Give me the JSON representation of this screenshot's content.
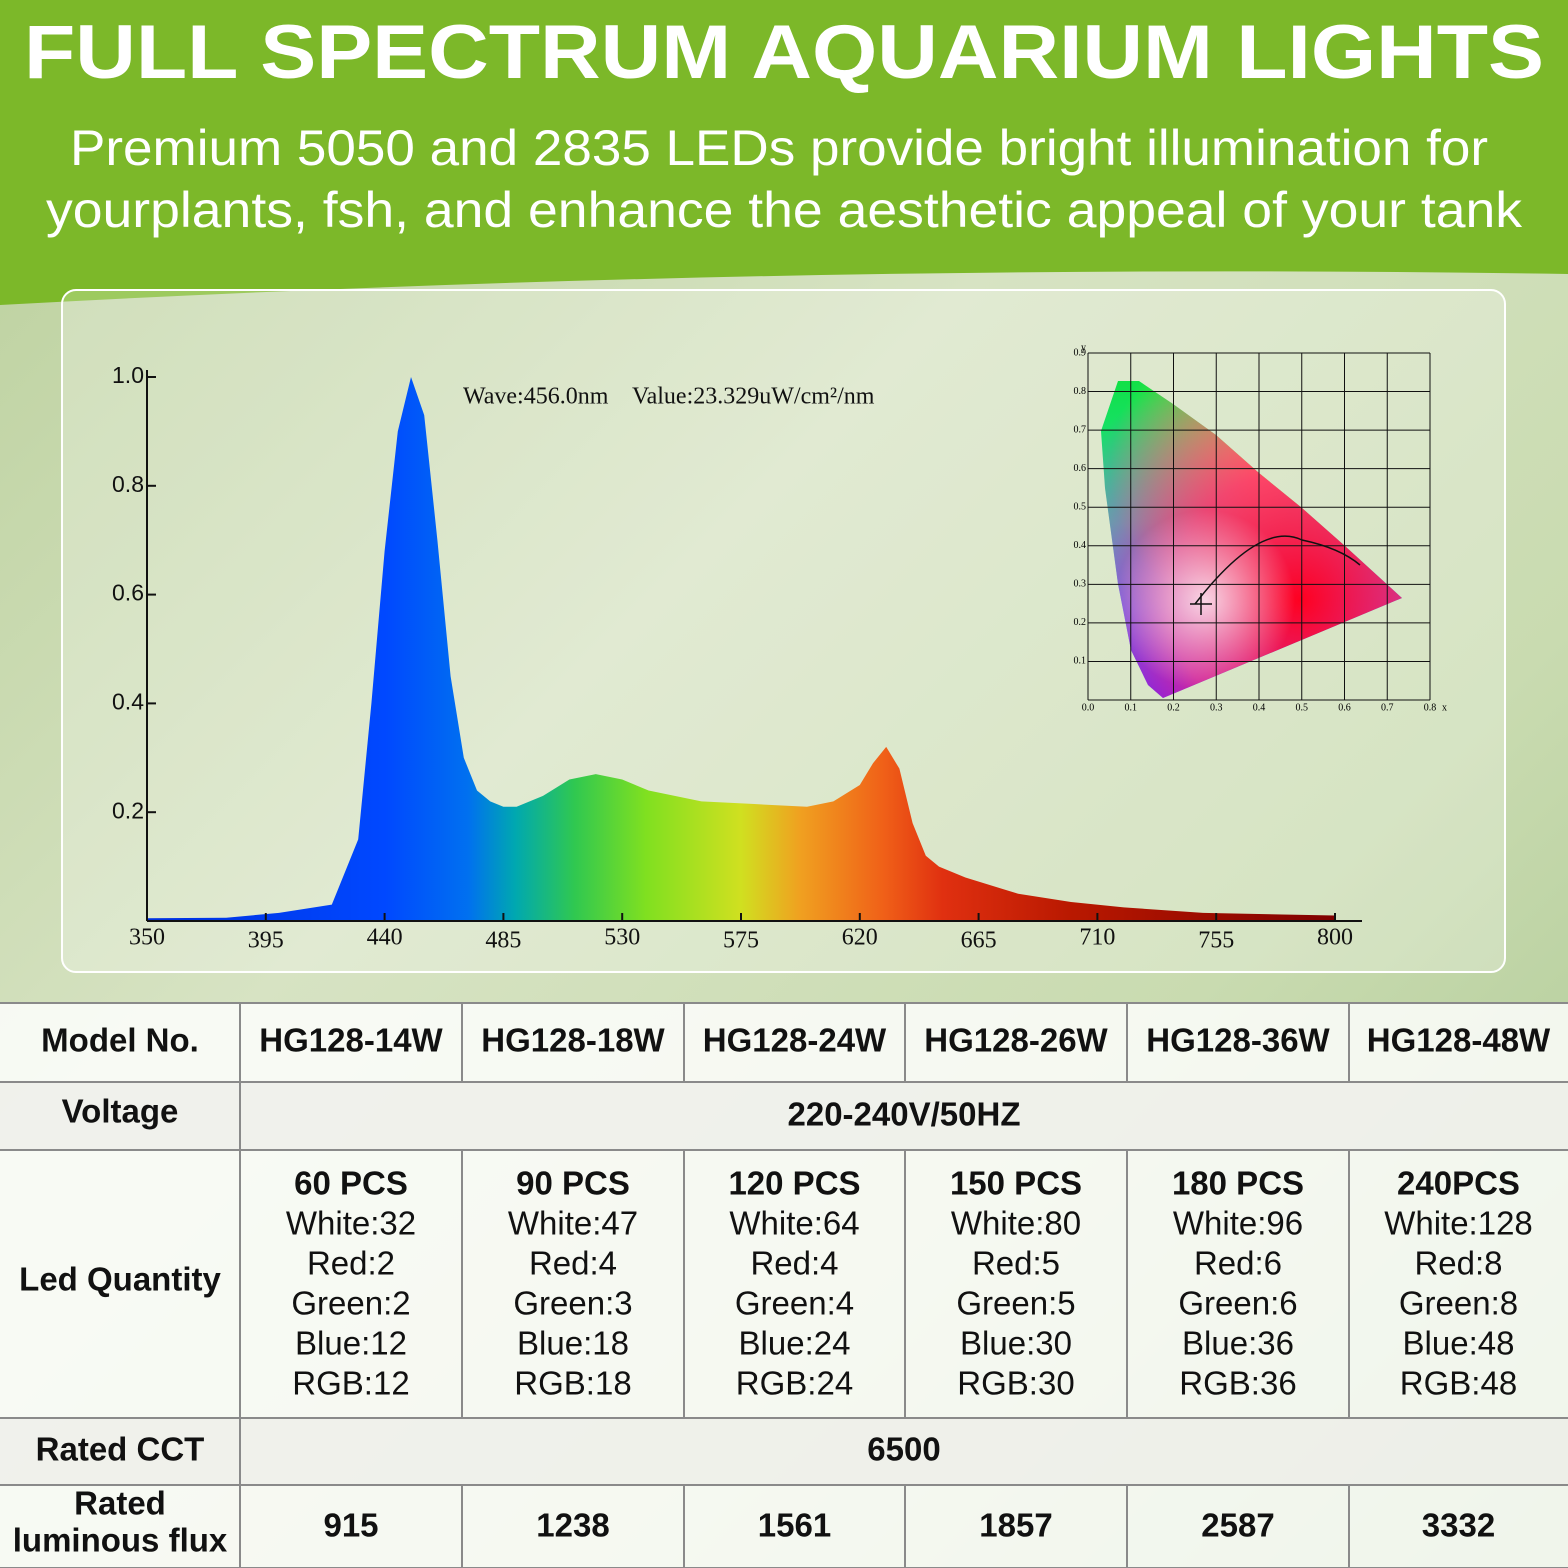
{
  "header": {
    "title": "FULL SPECTRUM AQUARIUM LIGHTS",
    "subtitle": [
      "Premium 5050 and 2835 LEDs provide bright illumination for",
      "yourplants, fsh, and enhance the aesthetic appeal of your tank"
    ]
  },
  "chart_data": {
    "type": "area",
    "annotation": "Wave:456.0nm    Value:23.329uW/cm²/nm",
    "x": [
      350,
      380,
      400,
      420,
      430,
      435,
      440,
      445,
      450,
      455,
      460,
      465,
      470,
      475,
      480,
      485,
      490,
      500,
      510,
      520,
      530,
      540,
      560,
      580,
      600,
      610,
      620,
      625,
      630,
      635,
      640,
      645,
      650,
      660,
      680,
      700,
      720,
      750,
      780,
      800
    ],
    "values": [
      0.005,
      0.006,
      0.015,
      0.03,
      0.15,
      0.4,
      0.68,
      0.9,
      1.0,
      0.93,
      0.7,
      0.45,
      0.3,
      0.24,
      0.22,
      0.21,
      0.21,
      0.23,
      0.26,
      0.27,
      0.26,
      0.24,
      0.22,
      0.215,
      0.21,
      0.22,
      0.25,
      0.29,
      0.32,
      0.28,
      0.18,
      0.12,
      0.1,
      0.08,
      0.05,
      0.035,
      0.025,
      0.015,
      0.012,
      0.01
    ],
    "xlim": [
      350,
      800
    ],
    "xticks": [
      350,
      395,
      440,
      485,
      530,
      575,
      620,
      665,
      710,
      755,
      800
    ],
    "ylim": [
      0,
      1
    ],
    "yticks": [
      {
        "value": 1,
        "label": "1.0"
      },
      0.8,
      0.6,
      0.4,
      0.2
    ]
  },
  "cie": {
    "xticks": [
      "0.0",
      "0.1",
      "0.2",
      "0.3",
      "0.4",
      "0.5",
      "0.6",
      "0.7",
      "0.8"
    ],
    "x_label": "x",
    "yticks": [
      "0.1",
      "0.2",
      "0.3",
      "0.4",
      "0.5",
      "0.6",
      "0.7",
      "0.8",
      "0.9"
    ],
    "y_label": "y"
  },
  "table": {
    "header": [
      "Model No.",
      "HG128-14W",
      "HG128-18W",
      "HG128-24W",
      "HG128-26W",
      "HG128-36W",
      "HG128-48W"
    ],
    "voltage": {
      "label": "Voltage",
      "value": "220-240V/50HZ"
    },
    "led": {
      "label": "Led Quantity",
      "cells": [
        [
          "60 PCS",
          "White:32",
          "Red:2",
          "Green:2",
          "Blue:12",
          "RGB:12"
        ],
        [
          "90 PCS",
          "White:47",
          "Red:4",
          "Green:3",
          "Blue:18",
          "RGB:18"
        ],
        [
          "120 PCS",
          "White:64",
          "Red:4",
          "Green:4",
          "Blue:24",
          "RGB:24"
        ],
        [
          "150 PCS",
          "White:80",
          "Red:5",
          "Green:5",
          "Blue:30",
          "RGB:30"
        ],
        [
          "180 PCS",
          "White:96",
          "Red:6",
          "Green:6",
          "Blue:36",
          "RGB:36"
        ],
        [
          "240PCS",
          "White:128",
          "Red:8",
          "Green:8",
          "Blue:48",
          "RGB:48"
        ]
      ]
    },
    "cct": {
      "label": "Rated CCT",
      "value": "6500"
    },
    "flux": {
      "label": [
        "Rated",
        "luminous flux"
      ],
      "values": [
        "915",
        "1238",
        "1561",
        "1857",
        "2587",
        "3332"
      ]
    }
  }
}
